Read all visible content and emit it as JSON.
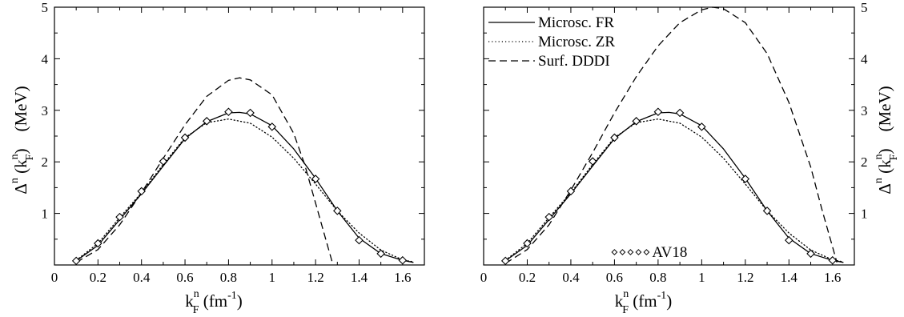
{
  "chart_data": [
    {
      "type": "line",
      "panel": "left",
      "xlabel": {
        "main": "k",
        "sup": "n",
        "sub": "F",
        "unit": "(fm",
        "unit_exp": "-1",
        "unit_close": ")"
      },
      "ylabel": {
        "main": "Δ",
        "sup1": "n",
        "open": "(k",
        "sup2": "n",
        "sub": "F",
        "close": ")",
        "unit": "(MeV)"
      },
      "xlim": [
        0,
        1.7
      ],
      "ylim": [
        0,
        5
      ],
      "xticks": [
        "0",
        "0.2",
        "0.4",
        "0.6",
        "0.8",
        "1",
        "1.2",
        "1.4",
        "1.6"
      ],
      "xtick_values": [
        0,
        0.2,
        0.4,
        0.6,
        0.8,
        1.0,
        1.2,
        1.4,
        1.6
      ],
      "yticks": [
        "1",
        "2",
        "3",
        "4",
        "5"
      ],
      "ytick_values": [
        1,
        2,
        3,
        4,
        5
      ],
      "ytick_side": "left",
      "legend": null,
      "series": [
        {
          "style": "solid",
          "x": [
            0.1,
            0.2,
            0.3,
            0.4,
            0.5,
            0.6,
            0.7,
            0.8,
            0.85,
            0.9,
            1.0,
            1.1,
            1.2,
            1.3,
            1.4,
            1.5,
            1.6,
            1.65
          ],
          "y": [
            0.08,
            0.38,
            0.88,
            1.38,
            1.92,
            2.45,
            2.78,
            2.95,
            2.96,
            2.93,
            2.7,
            2.25,
            1.68,
            1.05,
            0.52,
            0.22,
            0.09,
            0.05
          ]
        },
        {
          "style": "dotted",
          "x": [
            0.1,
            0.2,
            0.3,
            0.4,
            0.5,
            0.6,
            0.7,
            0.8,
            0.9,
            1.0,
            1.1,
            1.2,
            1.3,
            1.4,
            1.5,
            1.6,
            1.65
          ],
          "y": [
            0.09,
            0.42,
            0.92,
            1.4,
            1.95,
            2.47,
            2.76,
            2.83,
            2.75,
            2.48,
            2.07,
            1.57,
            1.05,
            0.62,
            0.29,
            0.1,
            0.06
          ]
        },
        {
          "style": "dashed",
          "x": [
            0.1,
            0.2,
            0.3,
            0.4,
            0.5,
            0.6,
            0.7,
            0.8,
            0.85,
            0.9,
            1.0,
            1.1,
            1.15,
            1.2,
            1.25,
            1.28
          ],
          "y": [
            0.05,
            0.3,
            0.78,
            1.4,
            2.07,
            2.72,
            3.27,
            3.58,
            3.63,
            3.59,
            3.3,
            2.55,
            1.95,
            1.2,
            0.45,
            0.0
          ]
        }
      ],
      "markers": {
        "shape": "diamond",
        "x": [
          0.1,
          0.2,
          0.3,
          0.4,
          0.5,
          0.6,
          0.7,
          0.8,
          0.9,
          1.0,
          1.2,
          1.3,
          1.4,
          1.5,
          1.6
        ],
        "y": [
          0.08,
          0.42,
          0.93,
          1.43,
          2.01,
          2.47,
          2.79,
          2.97,
          2.95,
          2.68,
          1.67,
          1.05,
          0.48,
          0.22,
          0.09
        ]
      }
    },
    {
      "type": "line",
      "panel": "right",
      "xlabel": {
        "main": "k",
        "sup": "n",
        "sub": "F",
        "unit": "(fm",
        "unit_exp": "-1",
        "unit_close": ")"
      },
      "ylabel": {
        "main": "Δ",
        "sup1": "n",
        "open": "(k",
        "sup2": "n",
        "sub": "F",
        "close": ")",
        "unit": "(MeV)"
      },
      "xlim": [
        0,
        1.7
      ],
      "ylim": [
        0,
        5
      ],
      "xticks": [
        "0",
        "0.2",
        "0.4",
        "0.6",
        "0.8",
        "1",
        "1.2",
        "1.4",
        "1.6"
      ],
      "xtick_values": [
        0,
        0.2,
        0.4,
        0.6,
        0.8,
        1.0,
        1.2,
        1.4,
        1.6
      ],
      "yticks": [
        "1",
        "2",
        "3",
        "4",
        "5"
      ],
      "ytick_values": [
        1,
        2,
        3,
        4,
        5
      ],
      "ytick_side": "right",
      "legend": {
        "placement": "top-left",
        "entries": [
          {
            "label": "Microsc. FR",
            "style": "solid"
          },
          {
            "label": "Microsc. ZR",
            "style": "dotted"
          },
          {
            "label": "Surf. DDDI",
            "style": "dashed"
          }
        ],
        "marker_entry": {
          "label": "AV18",
          "style": "diamond"
        }
      },
      "series": [
        {
          "style": "solid",
          "x": [
            0.1,
            0.2,
            0.3,
            0.4,
            0.5,
            0.6,
            0.7,
            0.8,
            0.85,
            0.9,
            1.0,
            1.1,
            1.2,
            1.3,
            1.4,
            1.5,
            1.6,
            1.65
          ],
          "y": [
            0.08,
            0.38,
            0.88,
            1.38,
            1.92,
            2.45,
            2.78,
            2.95,
            2.96,
            2.93,
            2.7,
            2.25,
            1.68,
            1.05,
            0.52,
            0.22,
            0.09,
            0.05
          ]
        },
        {
          "style": "dotted",
          "x": [
            0.1,
            0.2,
            0.3,
            0.4,
            0.5,
            0.6,
            0.7,
            0.8,
            0.9,
            1.0,
            1.1,
            1.2,
            1.3,
            1.4,
            1.5,
            1.6,
            1.65
          ],
          "y": [
            0.09,
            0.42,
            0.92,
            1.4,
            1.95,
            2.47,
            2.76,
            2.83,
            2.75,
            2.48,
            2.07,
            1.57,
            1.05,
            0.62,
            0.29,
            0.1,
            0.06
          ]
        },
        {
          "style": "dashed",
          "x": [
            0.1,
            0.2,
            0.3,
            0.4,
            0.5,
            0.6,
            0.7,
            0.8,
            0.9,
            1.0,
            1.05,
            1.1,
            1.2,
            1.3,
            1.4,
            1.5,
            1.55,
            1.6,
            1.62
          ],
          "y": [
            0.03,
            0.3,
            0.78,
            1.45,
            2.18,
            2.95,
            3.65,
            4.25,
            4.7,
            4.95,
            5.0,
            4.97,
            4.7,
            4.1,
            3.15,
            1.9,
            1.1,
            0.35,
            0.05
          ]
        }
      ],
      "markers": {
        "shape": "diamond",
        "x": [
          0.1,
          0.2,
          0.3,
          0.4,
          0.5,
          0.6,
          0.7,
          0.8,
          0.9,
          1.0,
          1.2,
          1.3,
          1.4,
          1.5,
          1.6
        ],
        "y": [
          0.08,
          0.42,
          0.93,
          1.43,
          2.01,
          2.47,
          2.79,
          2.97,
          2.95,
          2.68,
          1.67,
          1.05,
          0.48,
          0.22,
          0.09
        ]
      }
    }
  ]
}
